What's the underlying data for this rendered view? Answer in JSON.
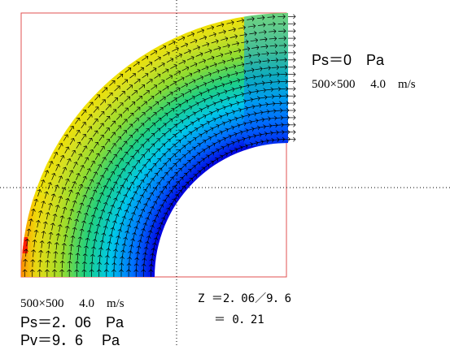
{
  "outlet_info": {
    "ps": "Ps＝0　Pa",
    "grid_velocity": "500×500　 4.0　m/s"
  },
  "inlet_info": {
    "grid_velocity": "500×500　 4.0　m/s",
    "ps": "Ps＝2．06　Pa",
    "pv": "Pv＝9．6　 Pa"
  },
  "zeta": {
    "equation": "Z ＝2．06／9．6",
    "result": "＝ 0．21"
  },
  "colors": {
    "frame": "#e05050",
    "crosshair": "#000000",
    "vector": "#000000",
    "colormap": [
      "#0000ff",
      "#00a0ff",
      "#00e0d0",
      "#30d040",
      "#c8e030",
      "#ffe000",
      "#ff8000",
      "#ff0000"
    ]
  }
}
